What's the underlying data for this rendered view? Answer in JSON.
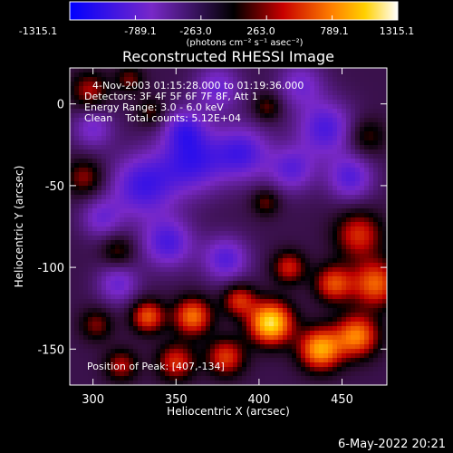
{
  "colorbar": {
    "tick_labels": [
      "-1315.1",
      "-789.1",
      "-263.0",
      "263.0",
      "789.1",
      "1315.1"
    ],
    "tick_values": [
      -1315.1,
      -789.1,
      -263.0,
      263.0,
      789.1,
      1315.1
    ],
    "range": [
      -1315.1,
      1315.1
    ],
    "units_label": "(photons cm⁻² s⁻¹ asec⁻²)"
  },
  "chart_data": {
    "type": "heatmap",
    "title": "Reconstructed RHESSI Image",
    "xlabel": "Heliocentric X (arcsec)",
    "ylabel": "Heliocentric Y (arcsec)",
    "xlim": [
      286,
      477
    ],
    "ylim": [
      -172,
      22
    ],
    "x_ticks": [
      300,
      350,
      400,
      450
    ],
    "y_ticks": [
      0,
      -50,
      -100,
      -150
    ],
    "annotations": [
      "4-Nov-2003 01:15:28.000 to 01:19:36.000",
      "Detectors: 3F 4F 5F 6F 7F 8F, Att 1",
      "Energy Range: 3.0 - 6.0 keV",
      "Clean    Total counts: 5.12E+04",
      "Position of Peak: [407,-134]"
    ],
    "peak": {
      "x": 407,
      "y": -134
    },
    "sources": [
      {
        "x": 407,
        "y": -134,
        "amp": 1400,
        "sig": 9
      },
      {
        "x": 437,
        "y": -150,
        "amp": 1150,
        "sig": 9
      },
      {
        "x": 459,
        "y": -142,
        "amp": 1000,
        "sig": 9
      },
      {
        "x": 470,
        "y": -110,
        "amp": 900,
        "sig": 10
      },
      {
        "x": 445,
        "y": -110,
        "amp": 800,
        "sig": 8
      },
      {
        "x": 460,
        "y": -80,
        "amp": 700,
        "sig": 10
      },
      {
        "x": 360,
        "y": -130,
        "amp": 950,
        "sig": 8
      },
      {
        "x": 333,
        "y": -130,
        "amp": 850,
        "sig": 7
      },
      {
        "x": 388,
        "y": -120,
        "amp": 700,
        "sig": 7
      },
      {
        "x": 418,
        "y": -100,
        "amp": 650,
        "sig": 7
      },
      {
        "x": 380,
        "y": -155,
        "amp": 750,
        "sig": 8
      },
      {
        "x": 350,
        "y": -158,
        "amp": 700,
        "sig": 8
      },
      {
        "x": 317,
        "y": -160,
        "amp": 550,
        "sig": 7
      },
      {
        "x": 302,
        "y": -135,
        "amp": 450,
        "sig": 7
      },
      {
        "x": 295,
        "y": -45,
        "amp": 500,
        "sig": 8
      },
      {
        "x": 298,
        "y": 8,
        "amp": 550,
        "sig": 8
      },
      {
        "x": 322,
        "y": 15,
        "amp": 420,
        "sig": 6
      },
      {
        "x": 335,
        "y": -5,
        "amp": 380,
        "sig": 6
      },
      {
        "x": 315,
        "y": -90,
        "amp": 400,
        "sig": 7
      },
      {
        "x": 404,
        "y": -60,
        "amp": 420,
        "sig": 6
      },
      {
        "x": 405,
        "y": -2,
        "amp": 420,
        "sig": 6
      },
      {
        "x": 465,
        "y": -20,
        "amp": 380,
        "sig": 8
      },
      {
        "x": 360,
        "y": -35,
        "amp": -700,
        "sig": 14
      },
      {
        "x": 330,
        "y": -50,
        "amp": -700,
        "sig": 14
      },
      {
        "x": 390,
        "y": -30,
        "amp": -650,
        "sig": 12
      },
      {
        "x": 440,
        "y": -15,
        "amp": -650,
        "sig": 12
      },
      {
        "x": 455,
        "y": -45,
        "amp": -600,
        "sig": 10
      },
      {
        "x": 420,
        "y": -40,
        "amp": -550,
        "sig": 10
      },
      {
        "x": 345,
        "y": -85,
        "amp": -650,
        "sig": 11
      },
      {
        "x": 380,
        "y": -95,
        "amp": -600,
        "sig": 10
      },
      {
        "x": 315,
        "y": -110,
        "amp": -500,
        "sig": 9
      },
      {
        "x": 300,
        "y": -15,
        "amp": -450,
        "sig": 9
      },
      {
        "x": 375,
        "y": 10,
        "amp": -500,
        "sig": 10
      },
      {
        "x": 425,
        "y": 12,
        "amp": -450,
        "sig": 10
      },
      {
        "x": 355,
        "y": -15,
        "amp": -500,
        "sig": 9
      },
      {
        "x": 305,
        "y": -70,
        "amp": -450,
        "sig": 9
      }
    ]
  },
  "footer": {
    "date": "6-May-2022 20:21"
  }
}
